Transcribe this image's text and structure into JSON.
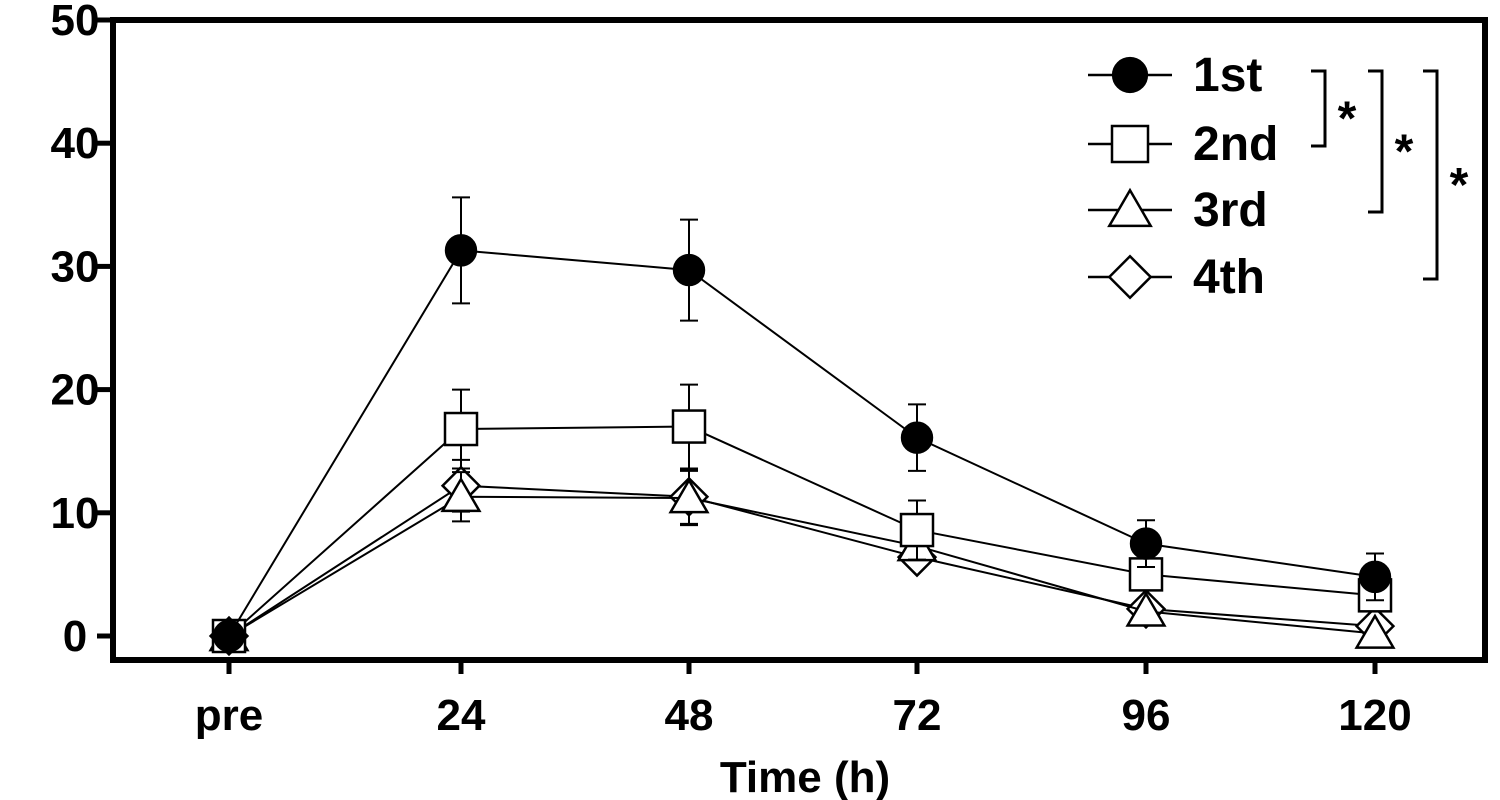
{
  "chart_data": {
    "type": "line",
    "categories": [
      "pre",
      "24",
      "48",
      "72",
      "96",
      "120"
    ],
    "xlabel": "Time (h)",
    "ylabel": "",
    "ylim": [
      0,
      50
    ],
    "yticks": [
      0,
      10,
      20,
      30,
      40,
      50
    ],
    "legend_position": "top-right",
    "series": [
      {
        "name": "1st",
        "marker": "filled-circle",
        "values": [
          0,
          31.3,
          29.7,
          16.1,
          7.5,
          4.8
        ],
        "errors": [
          0,
          4.3,
          4.1,
          2.7,
          1.9,
          1.9
        ]
      },
      {
        "name": "2nd",
        "marker": "open-square",
        "values": [
          0,
          16.8,
          17.0,
          8.6,
          5.0,
          3.3
        ],
        "errors": [
          0,
          3.2,
          3.4,
          2.4,
          0,
          0
        ]
      },
      {
        "name": "3rd",
        "marker": "open-triangle",
        "values": [
          0,
          11.3,
          11.2,
          7.3,
          2.0,
          0.2
        ],
        "errors": [
          0,
          2.0,
          2.2,
          0,
          0,
          0
        ]
      },
      {
        "name": "4th",
        "marker": "open-diamond",
        "values": [
          0,
          12.2,
          11.3,
          6.4,
          2.2,
          0.8
        ],
        "errors": [
          0,
          2.1,
          2.2,
          0,
          0,
          0
        ]
      }
    ],
    "significance": [
      {
        "from": "1st",
        "to": "2nd",
        "label": "*"
      },
      {
        "from": "1st",
        "to": "3rd",
        "label": "*"
      },
      {
        "from": "1st",
        "to": "4th",
        "label": "*"
      }
    ]
  }
}
